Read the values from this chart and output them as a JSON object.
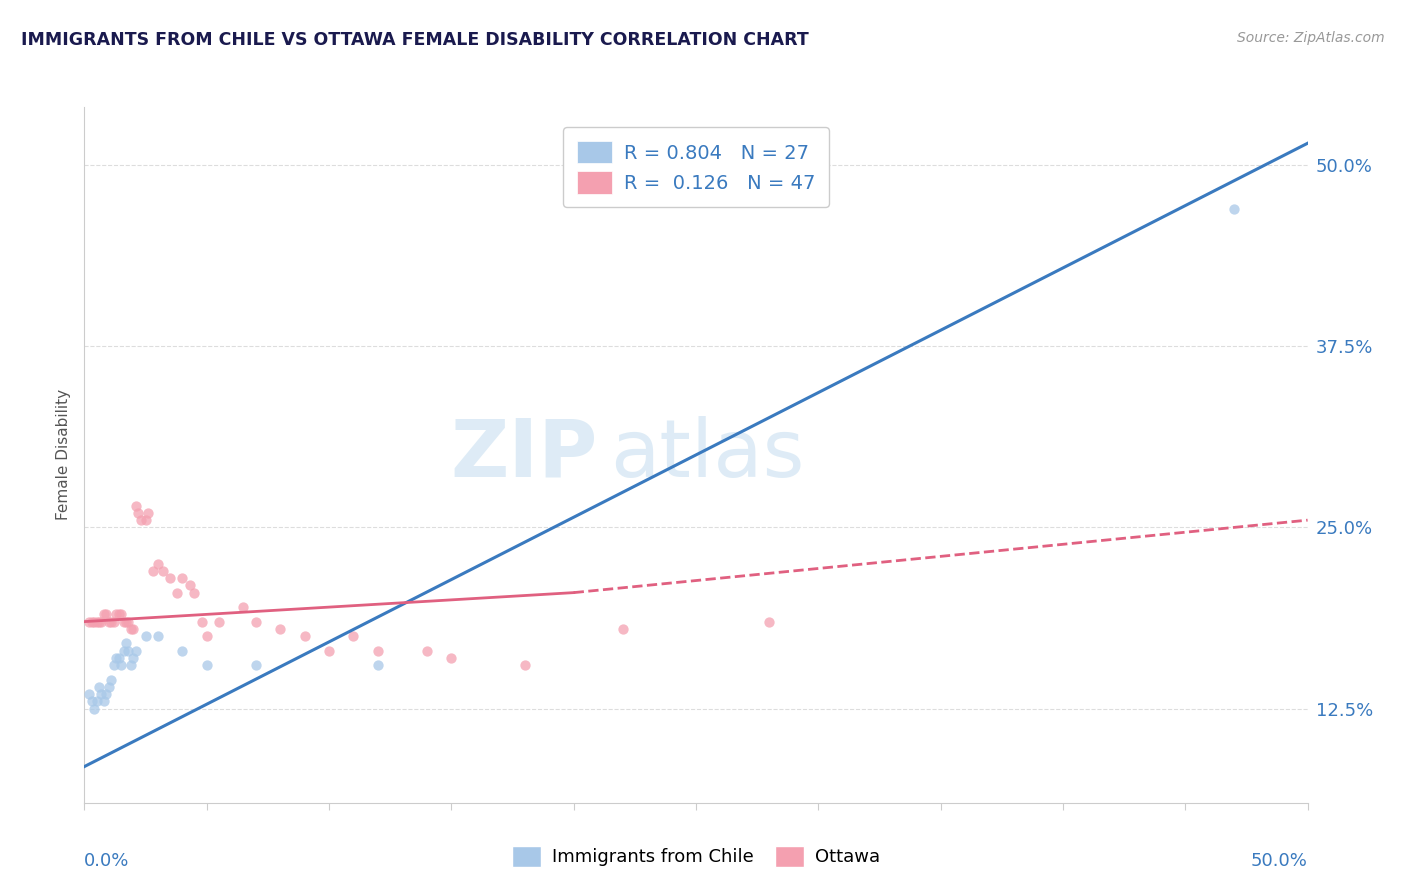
{
  "title": "IMMIGRANTS FROM CHILE VS OTTAWA FEMALE DISABILITY CORRELATION CHART",
  "source": "Source: ZipAtlas.com",
  "ylabel": "Female Disability",
  "xmin": 0.0,
  "xmax": 0.5,
  "ymin": 0.06,
  "ymax": 0.54,
  "yticks": [
    0.125,
    0.25,
    0.375,
    0.5
  ],
  "ytick_labels": [
    "12.5%",
    "25.0%",
    "37.5%",
    "50.0%"
  ],
  "watermark_zip": "ZIP",
  "watermark_atlas": "atlas",
  "legend_r1": "R = 0.804",
  "legend_n1": "N = 27",
  "legend_r2": "R =  0.126",
  "legend_n2": "N = 47",
  "blue_color": "#a8c8e8",
  "pink_color": "#f4a0b0",
  "blue_line_color": "#3a7abf",
  "pink_line_color": "#e06080",
  "blue_scatter": [
    [
      0.002,
      0.135
    ],
    [
      0.003,
      0.13
    ],
    [
      0.004,
      0.125
    ],
    [
      0.005,
      0.13
    ],
    [
      0.006,
      0.14
    ],
    [
      0.007,
      0.135
    ],
    [
      0.008,
      0.13
    ],
    [
      0.009,
      0.135
    ],
    [
      0.01,
      0.14
    ],
    [
      0.011,
      0.145
    ],
    [
      0.012,
      0.155
    ],
    [
      0.013,
      0.16
    ],
    [
      0.014,
      0.16
    ],
    [
      0.015,
      0.155
    ],
    [
      0.016,
      0.165
    ],
    [
      0.017,
      0.17
    ],
    [
      0.018,
      0.165
    ],
    [
      0.019,
      0.155
    ],
    [
      0.02,
      0.16
    ],
    [
      0.021,
      0.165
    ],
    [
      0.025,
      0.175
    ],
    [
      0.03,
      0.175
    ],
    [
      0.04,
      0.165
    ],
    [
      0.05,
      0.155
    ],
    [
      0.07,
      0.155
    ],
    [
      0.12,
      0.155
    ],
    [
      0.47,
      0.47
    ]
  ],
  "pink_scatter": [
    [
      0.002,
      0.185
    ],
    [
      0.003,
      0.185
    ],
    [
      0.004,
      0.185
    ],
    [
      0.005,
      0.185
    ],
    [
      0.006,
      0.185
    ],
    [
      0.007,
      0.185
    ],
    [
      0.008,
      0.19
    ],
    [
      0.009,
      0.19
    ],
    [
      0.01,
      0.185
    ],
    [
      0.011,
      0.185
    ],
    [
      0.012,
      0.185
    ],
    [
      0.013,
      0.19
    ],
    [
      0.014,
      0.19
    ],
    [
      0.015,
      0.19
    ],
    [
      0.016,
      0.185
    ],
    [
      0.017,
      0.185
    ],
    [
      0.018,
      0.185
    ],
    [
      0.019,
      0.18
    ],
    [
      0.02,
      0.18
    ],
    [
      0.021,
      0.265
    ],
    [
      0.022,
      0.26
    ],
    [
      0.023,
      0.255
    ],
    [
      0.025,
      0.255
    ],
    [
      0.026,
      0.26
    ],
    [
      0.028,
      0.22
    ],
    [
      0.03,
      0.225
    ],
    [
      0.032,
      0.22
    ],
    [
      0.035,
      0.215
    ],
    [
      0.038,
      0.205
    ],
    [
      0.04,
      0.215
    ],
    [
      0.043,
      0.21
    ],
    [
      0.045,
      0.205
    ],
    [
      0.048,
      0.185
    ],
    [
      0.05,
      0.175
    ],
    [
      0.055,
      0.185
    ],
    [
      0.065,
      0.195
    ],
    [
      0.07,
      0.185
    ],
    [
      0.08,
      0.18
    ],
    [
      0.09,
      0.175
    ],
    [
      0.1,
      0.165
    ],
    [
      0.11,
      0.175
    ],
    [
      0.12,
      0.165
    ],
    [
      0.14,
      0.165
    ],
    [
      0.15,
      0.16
    ],
    [
      0.18,
      0.155
    ],
    [
      0.22,
      0.18
    ],
    [
      0.28,
      0.185
    ]
  ],
  "blue_trendline_full": [
    [
      0.0,
      0.085
    ],
    [
      0.5,
      0.515
    ]
  ],
  "pink_trendline_solid": [
    [
      0.0,
      0.185
    ],
    [
      0.2,
      0.205
    ]
  ],
  "pink_trendline_dashed": [
    [
      0.2,
      0.205
    ],
    [
      0.5,
      0.255
    ]
  ],
  "grid_color": "#dddddd",
  "background_color": "#ffffff",
  "title_color": "#1a1a4e",
  "source_color": "#999999"
}
